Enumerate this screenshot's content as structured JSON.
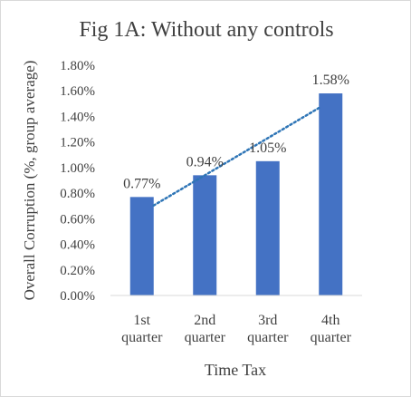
{
  "chart_data": {
    "type": "bar",
    "title": "Fig 1A: Without any controls",
    "xlabel": "Time Tax",
    "ylabel": "Overall Corruption (%, group average)",
    "categories": [
      [
        "1st",
        "quarter"
      ],
      [
        "2nd",
        "quarter"
      ],
      [
        "3rd",
        "quarter"
      ],
      [
        "4th",
        "quarter"
      ]
    ],
    "series": [
      {
        "values": [
          0.77,
          0.94,
          1.05,
          1.58
        ]
      }
    ],
    "data_labels": [
      "0.77%",
      "0.94%",
      "1.05%",
      "1.58%"
    ],
    "ylim": [
      0,
      1.8
    ],
    "y_ticks": [
      0,
      0.2,
      0.4,
      0.6,
      0.8,
      1.0,
      1.2,
      1.4,
      1.6,
      1.8
    ],
    "y_tick_labels": [
      "0.00%",
      "0.20%",
      "0.40%",
      "0.60%",
      "0.80%",
      "1.00%",
      "1.20%",
      "1.40%",
      "1.60%",
      "1.80%"
    ],
    "trendline": {
      "type": "linear",
      "style": "dotted"
    },
    "grid": false,
    "legend": "none",
    "colors": {
      "bar": "#4472c4",
      "trendline": "#2e75b6",
      "axis": "#d9d9d9",
      "text": "#404040"
    }
  }
}
